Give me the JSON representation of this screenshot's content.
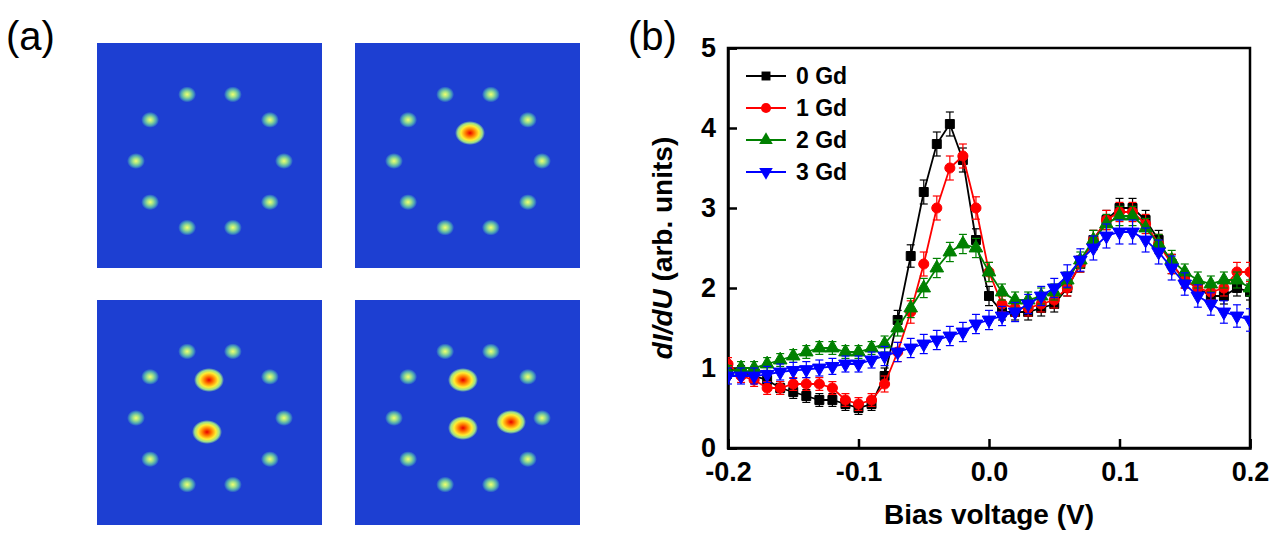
{
  "chart_data": [
    {
      "type": "image",
      "label": "(a)"
    },
    {
      "type": "line",
      "label": "(b)",
      "x_label": "Bias voltage (V)",
      "y_label": "dI/dU (arb. units)",
      "xlim": [
        -0.2,
        0.2
      ],
      "ylim": [
        0,
        5
      ],
      "xticks": [
        -0.2,
        -0.1,
        {
          "value": 0,
          "label": "0.0"
        },
        0.1,
        0.2
      ],
      "yticks": [
        0,
        1,
        2,
        3,
        4,
        5
      ],
      "legend": "upper left",
      "x": [
        -0.2,
        -0.19,
        -0.18,
        -0.17,
        -0.16,
        -0.15,
        -0.14,
        -0.13,
        -0.12,
        -0.11,
        -0.1,
        -0.09,
        -0.08,
        -0.07,
        -0.06,
        -0.05,
        -0.04,
        -0.03,
        -0.02,
        -0.01,
        0,
        0.01,
        0.02,
        0.03,
        0.04,
        0.05,
        0.06,
        0.07,
        0.08,
        0.09,
        0.1,
        0.11,
        0.12,
        0.13,
        0.14,
        0.15,
        0.16,
        0.17,
        0.18,
        0.19,
        0.2
      ],
      "series": [
        {
          "name": "0 Gd",
          "color": "#000000",
          "marker": "square",
          "line_style": "solid",
          "values": [
            1.0,
            0.95,
            0.9,
            0.85,
            0.75,
            0.7,
            0.65,
            0.6,
            0.6,
            0.55,
            0.5,
            0.55,
            0.9,
            1.6,
            2.4,
            3.2,
            3.8,
            4.05,
            3.6,
            2.6,
            1.9,
            1.7,
            1.7,
            1.7,
            1.75,
            1.8,
            2.0,
            2.3,
            2.6,
            2.85,
            3.0,
            3.0,
            2.85,
            2.6,
            2.3,
            2.1,
            2.0,
            1.9,
            1.9,
            2.0,
            1.95
          ],
          "errors": [
            0.08,
            0.08,
            0.08,
            0.08,
            0.08,
            0.08,
            0.08,
            0.08,
            0.08,
            0.08,
            0.08,
            0.08,
            0.1,
            0.12,
            0.14,
            0.15,
            0.15,
            0.15,
            0.15,
            0.14,
            0.12,
            0.1,
            0.1,
            0.1,
            0.1,
            0.1,
            0.1,
            0.1,
            0.12,
            0.12,
            0.12,
            0.12,
            0.12,
            0.12,
            0.12,
            0.1,
            0.1,
            0.1,
            0.1,
            0.1,
            0.1
          ]
        },
        {
          "name": "1 Gd",
          "color": "#ff0000",
          "marker": "circle",
          "line_style": "solid",
          "values": [
            1.05,
            0.9,
            0.85,
            0.75,
            0.75,
            0.8,
            0.8,
            0.8,
            0.75,
            0.6,
            0.55,
            0.6,
            0.8,
            1.2,
            1.7,
            2.3,
            3.0,
            3.5,
            3.65,
            3.0,
            2.2,
            1.8,
            1.75,
            1.75,
            1.8,
            1.85,
            2.0,
            2.3,
            2.6,
            2.85,
            2.95,
            2.95,
            2.8,
            2.55,
            2.3,
            2.1,
            2.0,
            1.95,
            2.0,
            2.2,
            2.2
          ],
          "errors": [
            0.08,
            0.08,
            0.08,
            0.08,
            0.08,
            0.08,
            0.08,
            0.08,
            0.08,
            0.08,
            0.08,
            0.08,
            0.1,
            0.12,
            0.14,
            0.15,
            0.15,
            0.15,
            0.15,
            0.14,
            0.12,
            0.1,
            0.1,
            0.1,
            0.1,
            0.1,
            0.1,
            0.1,
            0.12,
            0.12,
            0.12,
            0.12,
            0.12,
            0.12,
            0.12,
            0.1,
            0.1,
            0.1,
            0.1,
            0.12,
            0.12
          ]
        },
        {
          "name": "2 Gd",
          "color": "#008000",
          "marker": "triangle-up",
          "line_style": "solid",
          "values": [
            0.95,
            1.0,
            1.0,
            1.05,
            1.1,
            1.15,
            1.2,
            1.25,
            1.25,
            1.2,
            1.2,
            1.25,
            1.3,
            1.5,
            1.75,
            2.0,
            2.25,
            2.45,
            2.55,
            2.5,
            2.2,
            1.95,
            1.85,
            1.85,
            1.9,
            1.95,
            2.1,
            2.35,
            2.6,
            2.8,
            2.9,
            2.9,
            2.75,
            2.55,
            2.35,
            2.2,
            2.1,
            2.05,
            2.1,
            2.1,
            2.0
          ],
          "errors": [
            0.08,
            0.08,
            0.08,
            0.08,
            0.08,
            0.08,
            0.08,
            0.08,
            0.08,
            0.08,
            0.08,
            0.08,
            0.1,
            0.1,
            0.12,
            0.12,
            0.12,
            0.12,
            0.12,
            0.12,
            0.12,
            0.1,
            0.1,
            0.1,
            0.1,
            0.1,
            0.1,
            0.1,
            0.12,
            0.12,
            0.12,
            0.12,
            0.12,
            0.12,
            0.12,
            0.1,
            0.1,
            0.1,
            0.1,
            0.1,
            0.1
          ]
        },
        {
          "name": "3 Gd",
          "color": "#0000ff",
          "marker": "triangle-down",
          "line_style": "solid",
          "values": [
            0.9,
            0.9,
            0.9,
            0.92,
            0.95,
            0.97,
            0.98,
            1.0,
            1.02,
            1.05,
            1.05,
            1.1,
            1.15,
            1.2,
            1.25,
            1.3,
            1.35,
            1.4,
            1.45,
            1.55,
            1.6,
            1.65,
            1.7,
            1.8,
            1.9,
            2.0,
            2.15,
            2.35,
            2.5,
            2.65,
            2.7,
            2.7,
            2.6,
            2.45,
            2.25,
            2.05,
            1.9,
            1.8,
            1.7,
            1.65,
            1.6
          ],
          "errors": [
            0.1,
            0.1,
            0.1,
            0.1,
            0.1,
            0.1,
            0.1,
            0.1,
            0.1,
            0.1,
            0.1,
            0.1,
            0.12,
            0.12,
            0.12,
            0.12,
            0.12,
            0.12,
            0.12,
            0.12,
            0.12,
            0.12,
            0.12,
            0.12,
            0.12,
            0.12,
            0.14,
            0.14,
            0.15,
            0.15,
            0.15,
            0.15,
            0.15,
            0.15,
            0.15,
            0.14,
            0.14,
            0.14,
            0.14,
            0.14,
            0.14
          ]
        }
      ]
    }
  ]
}
